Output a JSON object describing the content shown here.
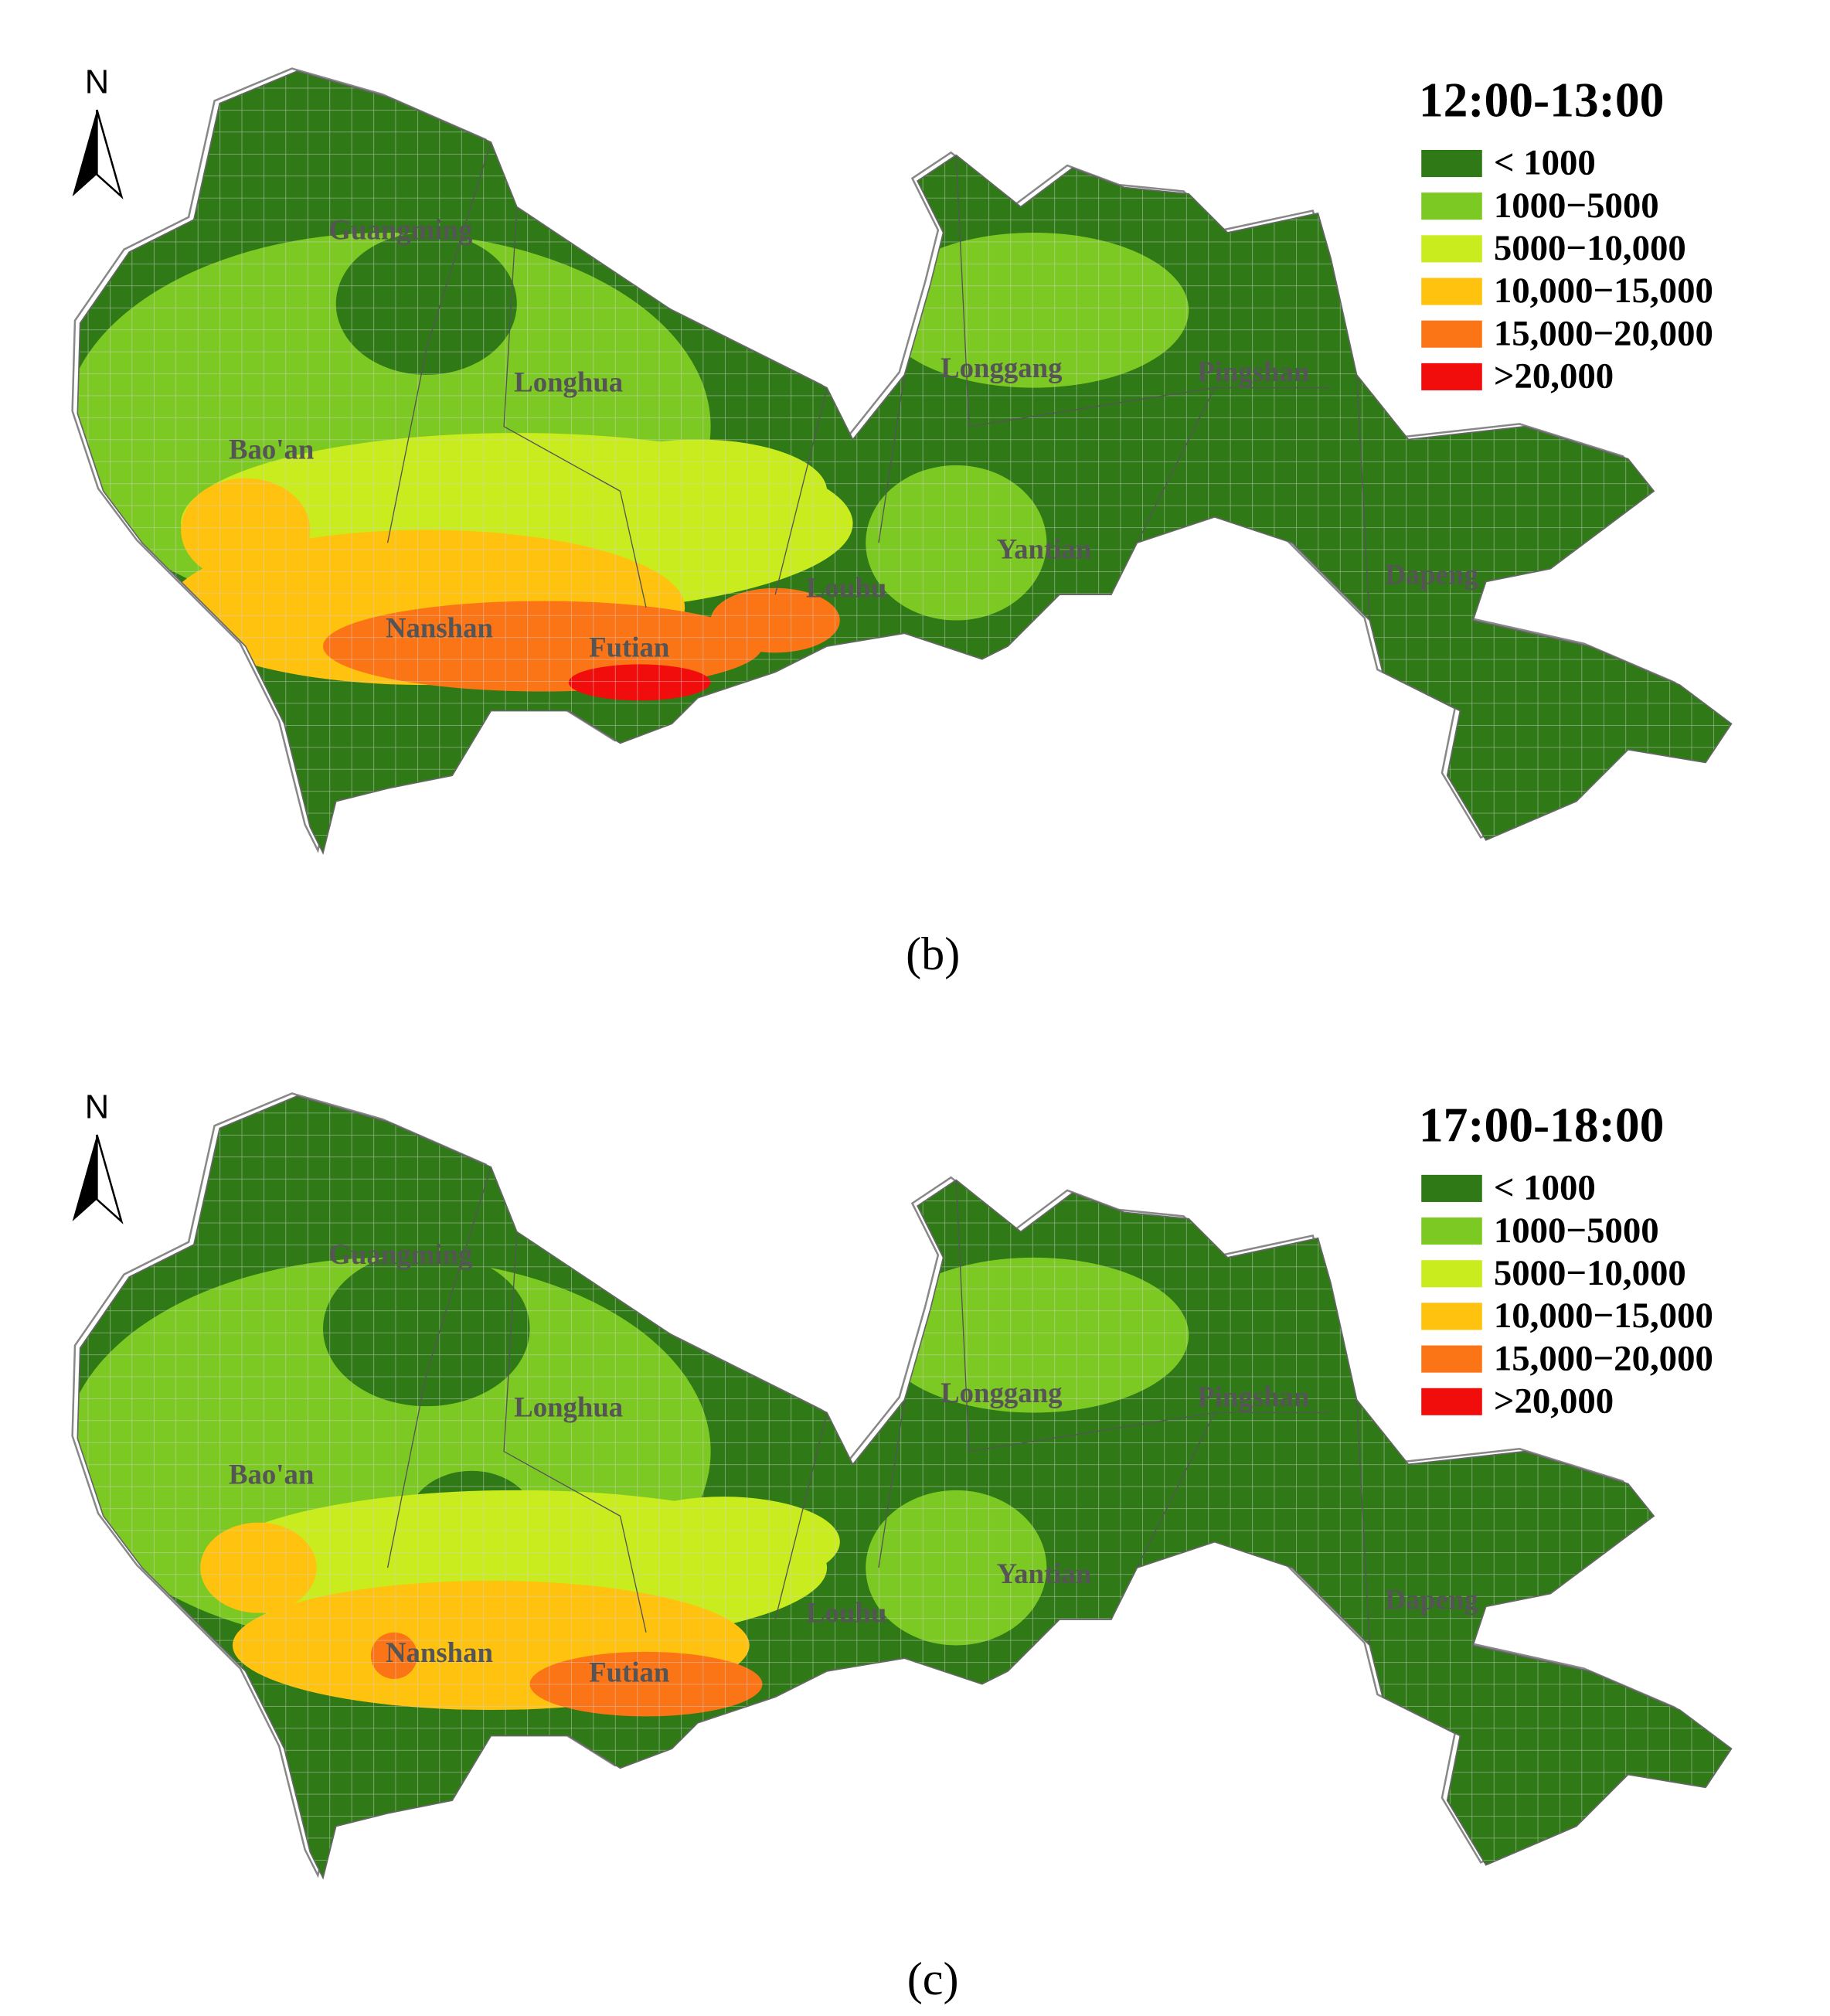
{
  "north": "N",
  "panels": [
    {
      "caption": "(b)",
      "title": "12:00-13:00",
      "legend": [
        {
          "label": "< 1000",
          "color": "#2f7a17"
        },
        {
          "label": "1000−5000",
          "color": "#7dc923"
        },
        {
          "label": "5000−10,000",
          "color": "#c9ec1f"
        },
        {
          "label": "10,000−15,000",
          "color": "#ffc20e"
        },
        {
          "label": "15,000−20,000",
          "color": "#fb7416"
        },
        {
          "label": ">20,000",
          "color": "#f20d0d"
        }
      ],
      "districts": [
        "Guangming",
        "Longhua",
        "Bao'an",
        "Nanshan",
        "Futian",
        "Louhu",
        "Longgang",
        "Pingshan",
        "Yantian",
        "Dapeng"
      ]
    },
    {
      "caption": "(c)",
      "title": "17:00-18:00",
      "legend": [
        {
          "label": "< 1000",
          "color": "#2f7a17"
        },
        {
          "label": "1000−5000",
          "color": "#7dc923"
        },
        {
          "label": "5000−10,000",
          "color": "#c9ec1f"
        },
        {
          "label": "10,000−15,000",
          "color": "#ffc20e"
        },
        {
          "label": "15,000−20,000",
          "color": "#fb7416"
        },
        {
          "label": ">20,000",
          "color": "#f20d0d"
        }
      ],
      "districts": [
        "Guangming",
        "Longhua",
        "Bao'an",
        "Nanshan",
        "Futian",
        "Louhu",
        "Longgang",
        "Pingshan",
        "Yantian",
        "Dapeng"
      ]
    }
  ]
}
